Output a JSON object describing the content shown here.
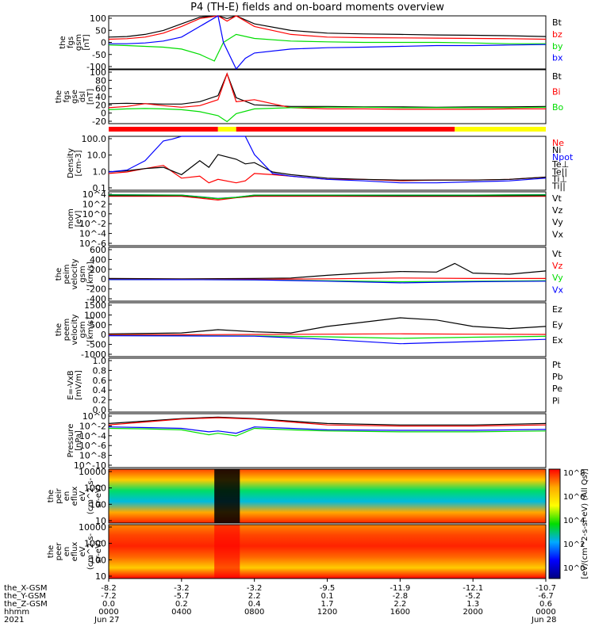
{
  "title": "P4 (TH-E) fields and on-board moments overview",
  "colors": {
    "black": "#000000",
    "red": "#ff0000",
    "green": "#00dd00",
    "blue": "#0000ff",
    "yellow": "#ffff00"
  },
  "chart_data": [
    {
      "type": "line",
      "ylabel": [
        "the",
        "fgs",
        "gsm",
        "[nT]"
      ],
      "yticks": [
        "100",
        "50",
        "0",
        "-50",
        "-100"
      ],
      "ylim": [
        -100,
        100
      ],
      "series": [
        {
          "name": "Bt",
          "color": "#000000",
          "x": [
            0,
            1,
            2,
            3,
            4,
            5,
            6,
            6.5,
            7,
            8,
            10,
            12,
            14,
            16,
            18,
            20,
            22,
            24
          ],
          "values": [
            20,
            22,
            30,
            45,
            70,
            95,
            100,
            90,
            100,
            70,
            45,
            35,
            32,
            30,
            28,
            27,
            25,
            22
          ]
        },
        {
          "name": "bz",
          "color": "#ff0000",
          "x": [
            0,
            1,
            2,
            3,
            4,
            5,
            6,
            6.5,
            7,
            8,
            10,
            12,
            14,
            16,
            18,
            20,
            22,
            24
          ],
          "values": [
            12,
            14,
            20,
            35,
            60,
            90,
            100,
            80,
            100,
            60,
            30,
            20,
            18,
            17,
            16,
            15,
            14,
            12
          ]
        },
        {
          "name": "by",
          "color": "#00dd00",
          "x": [
            0,
            1,
            2,
            3,
            4,
            5,
            5.8,
            6.3,
            7,
            8,
            10,
            12,
            14,
            16,
            18,
            20,
            22,
            24
          ],
          "values": [
            -10,
            -12,
            -15,
            -18,
            -25,
            -45,
            -70,
            0,
            30,
            15,
            5,
            2,
            0,
            0,
            0,
            -2,
            -5,
            -5
          ]
        },
        {
          "name": "bx",
          "color": "#0000ff",
          "x": [
            0,
            1,
            2,
            3,
            4,
            5,
            6,
            6.3,
            7,
            7.5,
            8,
            10,
            12,
            14,
            16,
            18,
            20,
            22,
            24
          ],
          "values": [
            -5,
            -5,
            -2,
            5,
            20,
            60,
            100,
            0,
            -100,
            -60,
            -40,
            -25,
            -20,
            -18,
            -15,
            -12,
            -12,
            -10,
            -8
          ]
        }
      ]
    },
    {
      "type": "line",
      "ylabel": [
        "the",
        "fgs",
        "gse",
        "dsl",
        "[nT]"
      ],
      "yticks": [
        "100",
        "80",
        "60",
        "40",
        "20",
        "0",
        "-20"
      ],
      "ylim": [
        -35,
        100
      ],
      "series": [
        {
          "name": "Bt",
          "color": "#000000",
          "x": [
            0,
            1,
            2,
            3,
            4,
            5,
            6,
            6.5,
            7,
            8,
            10,
            12,
            14,
            16,
            18,
            20,
            22,
            24
          ],
          "values": [
            15,
            16,
            15,
            14,
            14,
            20,
            35,
            90,
            30,
            12,
            8,
            8,
            7,
            7,
            6,
            7,
            7,
            8
          ]
        },
        {
          "name": "Bi",
          "color": "#ff0000",
          "x": [
            0,
            1,
            2,
            3,
            4,
            5,
            6,
            6.5,
            7,
            8,
            10,
            12,
            14,
            16,
            18,
            20,
            22,
            24
          ],
          "values": [
            5,
            8,
            15,
            10,
            6,
            10,
            25,
            90,
            20,
            25,
            5,
            2,
            2,
            1,
            1,
            1,
            2,
            2
          ]
        },
        {
          "name": "Bo",
          "color": "#00dd00",
          "x": [
            0,
            1,
            2,
            3,
            4,
            5,
            6,
            6.5,
            7,
            8,
            10,
            12,
            14,
            16,
            18,
            20,
            22,
            24
          ],
          "values": [
            0,
            2,
            3,
            2,
            0,
            -5,
            -15,
            -30,
            -10,
            2,
            5,
            6,
            6,
            5,
            5,
            5,
            5,
            6
          ]
        }
      ]
    },
    {
      "type": "line",
      "log": true,
      "ylabel": [
        "Density",
        "[cm-3]"
      ],
      "yticks": [
        "100.0",
        "10.0",
        "1.0",
        "0.1"
      ],
      "ylim": [
        0.1,
        300
      ],
      "series": [
        {
          "name": "Ne",
          "color": "#ff0000",
          "x": [
            0,
            1,
            2,
            3,
            4,
            5,
            5.5,
            6,
            7,
            7.5,
            8,
            9,
            10,
            12,
            14,
            16,
            18,
            20,
            22,
            24
          ],
          "values": [
            1.2,
            1.5,
            2.5,
            4,
            0.6,
            0.8,
            0.3,
            0.5,
            0.3,
            0.4,
            1.2,
            1.0,
            0.8,
            0.5,
            0.5,
            0.4,
            0.45,
            0.45,
            0.5,
            0.7
          ]
        },
        {
          "name": "Ni",
          "color": "#000000",
          "x": [
            0,
            1,
            2,
            3,
            4,
            5,
            5.5,
            6,
            7,
            7.5,
            8,
            9,
            10,
            12,
            14,
            16,
            18,
            20,
            22,
            24
          ],
          "values": [
            1.5,
            1.8,
            2.5,
            3,
            1.0,
            8,
            3,
            20,
            10,
            5,
            6,
            1.5,
            1.0,
            0.6,
            0.5,
            0.45,
            0.45,
            0.45,
            0.5,
            0.7
          ]
        },
        {
          "name": "Npot",
          "color": "#0000ff",
          "x": [
            0,
            1,
            2,
            3,
            3.5,
            4,
            5,
            6,
            7,
            7.5,
            8,
            9,
            10,
            12,
            14,
            16,
            18,
            20,
            22,
            24
          ],
          "values": [
            1.5,
            2,
            8,
            150,
            200,
            300,
            300,
            300,
            300,
            300,
            20,
            1.2,
            0.8,
            0.5,
            0.4,
            0.3,
            0.3,
            0.35,
            0.4,
            0.6
          ]
        }
      ]
    },
    {
      "type": "line",
      "log": true,
      "ylabel": [
        "mom",
        "[eV]"
      ],
      "yticks": [
        "10^4",
        "10^2",
        "10^0",
        "10^-2",
        "10^-4",
        "10^-6"
      ],
      "ylim": [
        1e-06,
        10000
      ],
      "series": [
        {
          "name": "Te⊥",
          "color": "#ff0000",
          "x": [
            0,
            4,
            6,
            7,
            8,
            12,
            16,
            20,
            24
          ],
          "values": [
            1500,
            1500,
            300,
            800,
            1500,
            1500,
            1400,
            1400,
            1500
          ]
        },
        {
          "name": "Te||",
          "color": "#000000",
          "x": [
            0,
            4,
            6,
            7,
            8,
            12,
            16,
            20,
            24
          ],
          "values": [
            2000,
            2000,
            500,
            900,
            2000,
            2000,
            1800,
            1800,
            2000
          ]
        },
        {
          "name": "Ti⊥",
          "color": "#0000ff",
          "x": [
            0,
            4,
            6,
            7,
            8,
            12,
            16,
            20,
            24
          ],
          "values": [
            3000,
            2500,
            600,
            1000,
            2500,
            2500,
            2500,
            2500,
            3000
          ]
        },
        {
          "name": "Ti||",
          "color": "#00dd00",
          "x": [
            0,
            4,
            6,
            7,
            8,
            12,
            16,
            20,
            24
          ],
          "values": [
            2800,
            2400,
            550,
            950,
            2400,
            2400,
            2400,
            2400,
            2800
          ]
        }
      ]
    },
    {
      "type": "line",
      "ylabel": [
        "the",
        "peim",
        "velocity",
        "gsm",
        "[km/s]"
      ],
      "yticks": [
        "600",
        "400",
        "200",
        "0",
        "-200",
        "-400"
      ],
      "ylim": [
        -400,
        600
      ],
      "series": [
        {
          "name": "Vt",
          "color": "#000000",
          "x": [
            0,
            4,
            8,
            10,
            12,
            14,
            16,
            18,
            19,
            20,
            22,
            24
          ],
          "values": [
            20,
            15,
            20,
            30,
            80,
            120,
            150,
            140,
            300,
            120,
            100,
            160
          ]
        },
        {
          "name": "Vz",
          "color": "#ff0000",
          "x": [
            0,
            4,
            8,
            12,
            16,
            20,
            24
          ],
          "values": [
            5,
            5,
            5,
            15,
            30,
            20,
            20
          ]
        },
        {
          "name": "Vy",
          "color": "#00dd00",
          "x": [
            0,
            4,
            8,
            12,
            16,
            20,
            24
          ],
          "values": [
            0,
            0,
            -5,
            -20,
            -40,
            -30,
            -20
          ]
        },
        {
          "name": "Vx",
          "color": "#0000ff",
          "x": [
            0,
            4,
            8,
            12,
            16,
            20,
            24
          ],
          "values": [
            0,
            -2,
            -5,
            -30,
            -60,
            -40,
            -30
          ]
        }
      ]
    },
    {
      "type": "line",
      "ylabel": [
        "the",
        "peem",
        "velocity",
        "gsm",
        "[km/s]"
      ],
      "yticks": [
        "1500",
        "1000",
        "500",
        "0",
        "-500",
        "-1000"
      ],
      "ylim": [
        -1000,
        1500
      ],
      "series": [
        {
          "name": "Vt",
          "color": "#000000",
          "x": [
            0,
            4,
            6,
            8,
            10,
            12,
            14,
            16,
            18,
            20,
            22,
            24
          ],
          "values": [
            50,
            100,
            250,
            150,
            100,
            400,
            600,
            800,
            700,
            400,
            300,
            400
          ]
        },
        {
          "name": "Vz",
          "color": "#ff0000",
          "x": [
            0,
            4,
            8,
            12,
            16,
            20,
            24
          ],
          "values": [
            20,
            15,
            30,
            40,
            60,
            40,
            30
          ]
        },
        {
          "name": "Vy",
          "color": "#00dd00",
          "x": [
            0,
            4,
            8,
            12,
            16,
            20,
            24
          ],
          "values": [
            -20,
            -30,
            -40,
            -80,
            -150,
            -100,
            -60
          ]
        },
        {
          "name": "Vx",
          "color": "#0000ff",
          "x": [
            0,
            4,
            8,
            12,
            16,
            20,
            24
          ],
          "values": [
            -30,
            -40,
            -50,
            -200,
            -400,
            -300,
            -200
          ]
        }
      ]
    },
    {
      "type": "line",
      "ylabel": [
        "E=-VxB",
        "[mV/m]"
      ],
      "yticks": [
        "1.0",
        "0.8",
        "0.6",
        "0.4",
        "0.2",
        "0.0"
      ],
      "ylim": [
        0,
        1
      ],
      "series": [
        {
          "name": "Ez",
          "color": "#ff0000",
          "x": [],
          "values": []
        },
        {
          "name": "Ey",
          "color": "#00dd00",
          "x": [],
          "values": []
        },
        {
          "name": "Ex",
          "color": "#0000ff",
          "x": [],
          "values": []
        }
      ]
    },
    {
      "type": "line",
      "log": true,
      "ylabel": [
        "Pressure",
        "[nPa]"
      ],
      "yticks": [
        "10^0",
        "10^-2",
        "10^-4",
        "10^-6",
        "10^-8",
        "10^-10"
      ],
      "ylim": [
        1e-10,
        10
      ],
      "series": [
        {
          "name": "Pt",
          "color": "#000000",
          "x": [
            0,
            2,
            4,
            6,
            8,
            10,
            12,
            16,
            20,
            24
          ],
          "values": [
            0.1,
            0.3,
            1,
            2,
            1,
            0.3,
            0.1,
            0.05,
            0.05,
            0.1
          ]
        },
        {
          "name": "Pb",
          "color": "#ff0000",
          "x": [
            0,
            2,
            4,
            6,
            8,
            10,
            12,
            16,
            20,
            24
          ],
          "values": [
            0.05,
            0.2,
            0.8,
            1.5,
            0.8,
            0.2,
            0.05,
            0.03,
            0.03,
            0.05
          ]
        },
        {
          "name": "Pe",
          "color": "#00dd00",
          "x": [
            0,
            2,
            4,
            5.5,
            6,
            7,
            8,
            10,
            12,
            16,
            20,
            24
          ],
          "values": [
            0.01,
            0.008,
            0.005,
            0.0005,
            0.001,
            0.0003,
            0.01,
            0.005,
            0.003,
            0.002,
            0.002,
            0.003
          ]
        },
        {
          "name": "Pi",
          "color": "#0000ff",
          "x": [
            0,
            2,
            4,
            5.5,
            6,
            7,
            8,
            10,
            12,
            16,
            20,
            24
          ],
          "values": [
            0.02,
            0.015,
            0.01,
            0.002,
            0.003,
            0.001,
            0.02,
            0.01,
            0.005,
            0.004,
            0.004,
            0.006
          ]
        }
      ]
    },
    {
      "type": "heatmap",
      "ylabel": [
        "the",
        "peir",
        "en",
        "eflux",
        "eV",
        "(cm^2-s-",
        "sr-eV)"
      ],
      "yticks": [
        "10000",
        "1000",
        "100",
        "10"
      ]
    },
    {
      "type": "heatmap",
      "ylabel": [
        "the",
        "peer",
        "en",
        "eflux",
        "eV",
        "(cm^2-s-",
        "sr-eV)"
      ],
      "yticks": [
        "10000",
        "1000",
        "100",
        "10"
      ],
      "colorbar_label": "[eV/(cm^2-s-sr-eV) (All Qs)]",
      "colorbar_ticks": [
        "10^8",
        "10^6",
        "10^4",
        "10^2",
        "10^0"
      ]
    }
  ],
  "legends": [
    [
      "Bt",
      "bz",
      "by",
      "bx"
    ],
    [
      "Bt",
      "Bi",
      "Bo"
    ],
    [
      "Ne",
      "Ni",
      "Npot",
      "Te⊥",
      "Te||",
      "Ti⊥",
      "Ti||"
    ],
    [
      "Vt",
      "Vz",
      "Vy",
      "Vx"
    ],
    [
      "Vt",
      "Vz",
      "Vy",
      "Vx"
    ],
    [
      "Ez",
      "Ey",
      "Ex"
    ],
    [
      "Pt",
      "Pb",
      "Pe",
      "Pi"
    ]
  ],
  "xaxis": {
    "row_labels": [
      "the_X-GSM",
      "the_Y-GSM",
      "the_Z-GSM",
      "hhmm",
      "2021"
    ],
    "columns": [
      [
        "-8.2",
        "-7.2",
        "0.0",
        "0000",
        "Jun 27"
      ],
      [
        "-3.2",
        "-5.7",
        "0.2",
        "0400",
        ""
      ],
      [
        "-3.2",
        "2.2",
        "0.4",
        "0800",
        ""
      ],
      [
        "-9.5",
        "0.1",
        "1.7",
        "1200",
        ""
      ],
      [
        "-11.9",
        "-2.8",
        "2.2",
        "1600",
        ""
      ],
      [
        "-12.1",
        "-5.2",
        "1.3",
        "2000",
        ""
      ],
      [
        "-10.7",
        "-6.7",
        "0.6",
        "0000",
        "Jun 28"
      ]
    ]
  },
  "status_bar": {
    "colors": [
      "#ff0000",
      "#ffff00"
    ]
  }
}
